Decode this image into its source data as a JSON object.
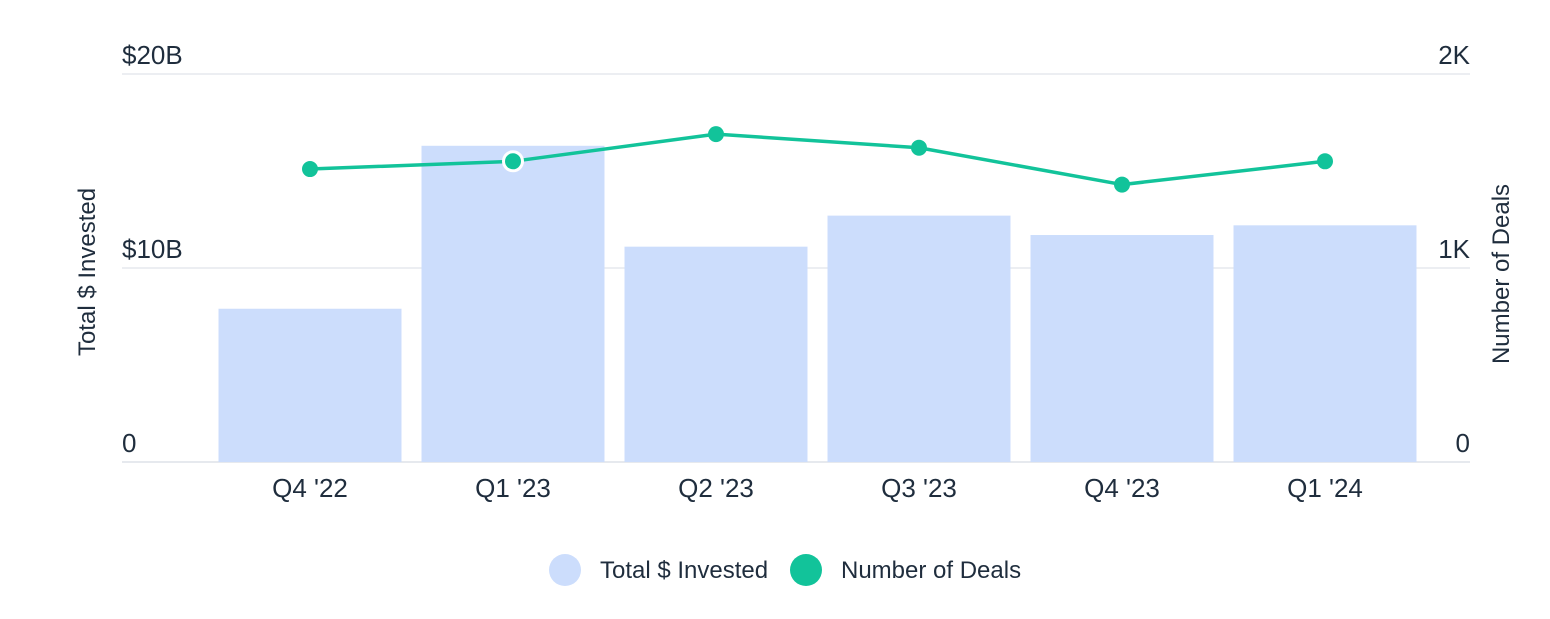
{
  "colors": {
    "bar": "#CCDDFC",
    "line": "#12C39A",
    "text": "#1F2D3D",
    "grid": "#E6E9EE"
  },
  "chart_data": {
    "type": "bar",
    "categories": [
      "Q4 '22",
      "Q1 '23",
      "Q2 '23",
      "Q3 '23",
      "Q4 '23",
      "Q1 '24"
    ],
    "series": [
      {
        "name": "Total $ Invested",
        "type": "bar",
        "axis": "left",
        "values": [
          7.9,
          16.3,
          11.1,
          12.7,
          11.7,
          12.2
        ]
      },
      {
        "name": "Number of Deals",
        "type": "line",
        "axis": "right",
        "values": [
          1510,
          1550,
          1690,
          1620,
          1430,
          1550
        ]
      }
    ],
    "ylabel": "Total $ Invested",
    "y2label": "Number of Deals",
    "ylim": [
      0,
      20
    ],
    "y2lim": [
      0,
      2000
    ],
    "yticks": [
      0,
      10,
      20
    ],
    "ytick_labels": [
      "0",
      "$10B",
      "$20B"
    ],
    "y2ticks": [
      0,
      1000,
      2000
    ],
    "y2tick_labels": [
      "0",
      "1K",
      "2K"
    ],
    "highlighted_point": {
      "series": "Number of Deals",
      "category": "Q1 '23"
    },
    "grid": true,
    "legend": "bottom-center",
    "legend_items": [
      {
        "label": "Total $ Invested",
        "color": "#CCDDFC"
      },
      {
        "label": "Number of Deals",
        "color": "#12C39A"
      }
    ]
  }
}
